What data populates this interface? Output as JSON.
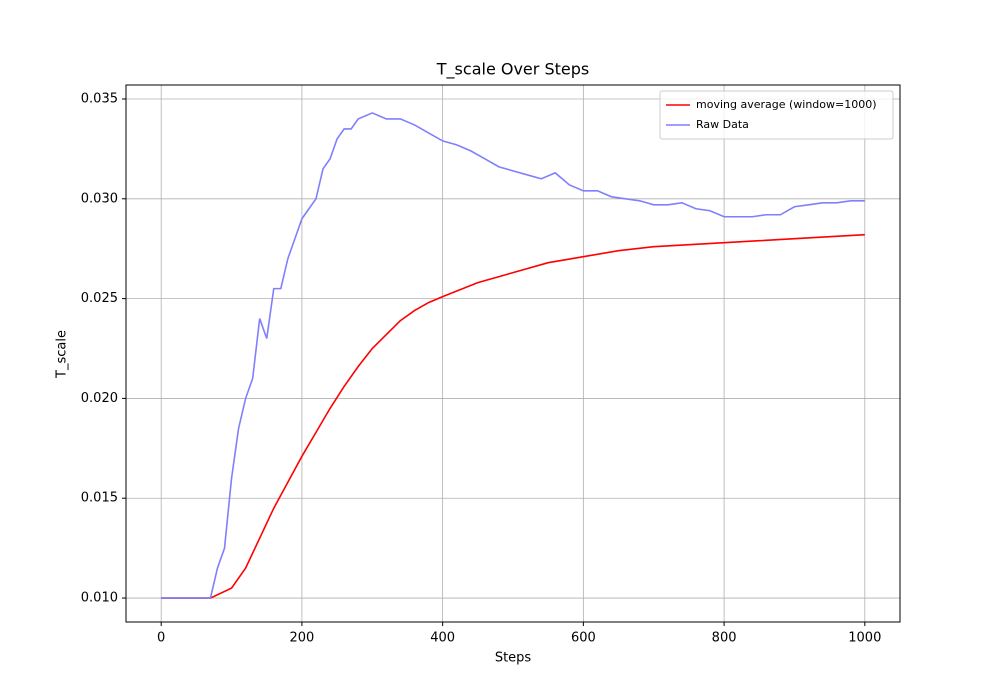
{
  "chart_data": {
    "type": "line",
    "title": "T_scale Over Steps",
    "x_label": "Steps",
    "y_label": "T_scale",
    "xlim": [
      -50,
      1050
    ],
    "xticks": [
      0,
      200,
      400,
      600,
      800,
      1000
    ],
    "ylim": [
      0.0088,
      0.0357
    ],
    "yticks": [
      {
        "value": 0.01,
        "label": "0.010"
      },
      {
        "value": 0.015,
        "label": "0.015"
      },
      {
        "value": 0.02,
        "label": "0.020"
      },
      {
        "value": 0.025,
        "label": "0.025"
      },
      {
        "value": 0.03,
        "label": "0.030"
      },
      {
        "value": 0.035,
        "label": "0.035"
      }
    ],
    "grid": true,
    "legend": "upper right",
    "series": [
      {
        "name": "moving average (window=1000)",
        "color": "#ff0000",
        "x": [
          0,
          70,
          100,
          120,
          140,
          160,
          180,
          200,
          220,
          240,
          260,
          280,
          300,
          320,
          340,
          360,
          380,
          400,
          450,
          500,
          550,
          600,
          650,
          700,
          750,
          800,
          850,
          900,
          950,
          1000
        ],
        "values": [
          0.01,
          0.01,
          0.0105,
          0.0115,
          0.013,
          0.0145,
          0.0158,
          0.0171,
          0.0183,
          0.0195,
          0.0206,
          0.0216,
          0.0225,
          0.0232,
          0.0239,
          0.0244,
          0.0248,
          0.0251,
          0.0258,
          0.0263,
          0.0268,
          0.0271,
          0.0274,
          0.0276,
          0.0277,
          0.0278,
          0.0279,
          0.028,
          0.0281,
          0.0282
        ]
      },
      {
        "name": "Raw Data",
        "color": "#7f7fff",
        "x": [
          0,
          20,
          40,
          60,
          70,
          80,
          90,
          100,
          110,
          120,
          130,
          140,
          150,
          160,
          170,
          180,
          190,
          200,
          210,
          220,
          230,
          240,
          250,
          260,
          270,
          280,
          300,
          320,
          340,
          360,
          380,
          400,
          420,
          440,
          460,
          480,
          500,
          520,
          540,
          560,
          580,
          600,
          620,
          640,
          660,
          680,
          700,
          720,
          740,
          760,
          780,
          800,
          820,
          840,
          860,
          880,
          900,
          920,
          940,
          960,
          980,
          1000
        ],
        "values": [
          0.01,
          0.01,
          0.01,
          0.01,
          0.01,
          0.0115,
          0.0125,
          0.016,
          0.0185,
          0.02,
          0.021,
          0.024,
          0.023,
          0.0255,
          0.0255,
          0.027,
          0.028,
          0.029,
          0.0295,
          0.03,
          0.0315,
          0.032,
          0.033,
          0.0335,
          0.0335,
          0.034,
          0.0343,
          0.034,
          0.034,
          0.0337,
          0.0333,
          0.0329,
          0.0327,
          0.0324,
          0.032,
          0.0316,
          0.0314,
          0.0312,
          0.031,
          0.0313,
          0.0307,
          0.0304,
          0.0304,
          0.0301,
          0.03,
          0.0299,
          0.0297,
          0.0297,
          0.0298,
          0.0295,
          0.0294,
          0.0291,
          0.0291,
          0.0291,
          0.0292,
          0.0292,
          0.0296,
          0.0297,
          0.0298,
          0.0298,
          0.0299,
          0.0299
        ]
      }
    ]
  }
}
